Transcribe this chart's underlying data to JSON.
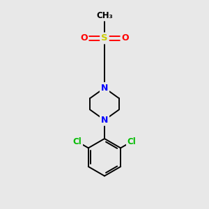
{
  "background_color": "#e8e8e8",
  "bond_color": "#000000",
  "N_color": "#0000ff",
  "O_color": "#ff0000",
  "S_color": "#cccc00",
  "Cl_color": "#00bb00",
  "font_size": 8.5,
  "figsize": [
    3.0,
    3.0
  ],
  "dpi": 100,
  "lw": 1.4,
  "xlim": [
    0,
    10
  ],
  "ylim": [
    0,
    10
  ]
}
